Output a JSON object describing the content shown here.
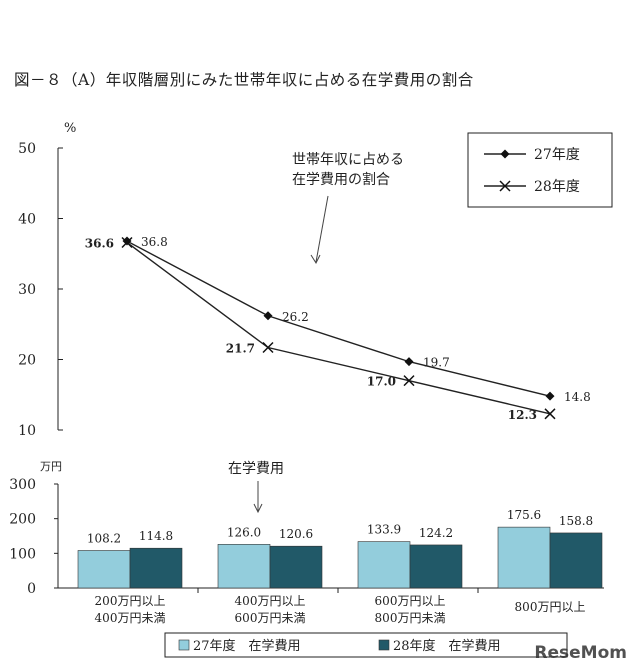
{
  "title": "図－８（A）年収階層別にみた世帯年収に占める在学費用の割合",
  "watermark": "ReseMom",
  "chart_data": [
    {
      "type": "line",
      "y_unit": "%",
      "ylim": [
        10,
        50
      ],
      "yticks": [
        10,
        20,
        30,
        40,
        50
      ],
      "annotation": [
        "世帯年収に占める",
        "在学費用の割合"
      ],
      "legend_position": "top-right",
      "series": [
        {
          "name": "27年度",
          "marker": "diamond",
          "values": [
            36.8,
            26.2,
            19.7,
            14.8
          ],
          "labels": [
            "36.8",
            "26.2",
            "19.7",
            "14.8"
          ]
        },
        {
          "name": "28年度",
          "marker": "x",
          "values": [
            36.6,
            21.7,
            17.0,
            12.3
          ],
          "labels": [
            "36.6",
            "21.7",
            "17.0",
            "12.3"
          ]
        }
      ]
    },
    {
      "type": "bar",
      "y_unit": "万円",
      "ylim": [
        0,
        300
      ],
      "yticks": [
        0,
        100,
        200,
        300
      ],
      "annotation": "在学費用",
      "categories": [
        [
          "200万円以上",
          "400万円未満"
        ],
        [
          "400万円以上",
          "600万円未満"
        ],
        [
          "600万円以上",
          "800万円未満"
        ],
        [
          "800万円以上"
        ]
      ],
      "legend_position": "bottom",
      "series": [
        {
          "name": "27年度 在学費用",
          "legend_label": "27年度　在学費用",
          "color": "#93cddc",
          "values": [
            108.2,
            126.0,
            133.9,
            175.6
          ],
          "labels": [
            "108.2",
            "126.0",
            "133.9",
            "175.6"
          ]
        },
        {
          "name": "28年度 在学費用",
          "legend_label": "28年度　在学費用",
          "color": "#215968",
          "values": [
            114.8,
            120.6,
            124.2,
            158.8
          ],
          "labels": [
            "114.8",
            "120.6",
            "124.2",
            "158.8"
          ]
        }
      ]
    }
  ]
}
